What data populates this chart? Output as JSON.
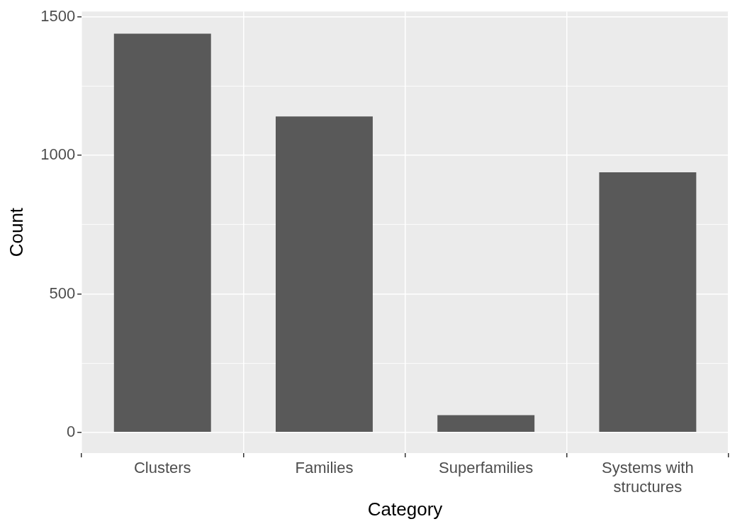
{
  "chart_data": {
    "type": "bar",
    "xlabel": "Category",
    "ylabel": "Count",
    "categories": [
      "Clusters",
      "Families",
      "Superfamilies",
      "Systems with\nstructures"
    ],
    "values": [
      1440,
      1141,
      62,
      939
    ],
    "color": "#595959",
    "ylim": [
      -75,
      1520
    ],
    "yticks": [
      0,
      {
        "value": 250,
        "label": null
      },
      500,
      {
        "value": 750,
        "label": null
      },
      1000,
      {
        "value": 1250,
        "label": null
      },
      1500
    ],
    "grid": true,
    "legend": false
  }
}
